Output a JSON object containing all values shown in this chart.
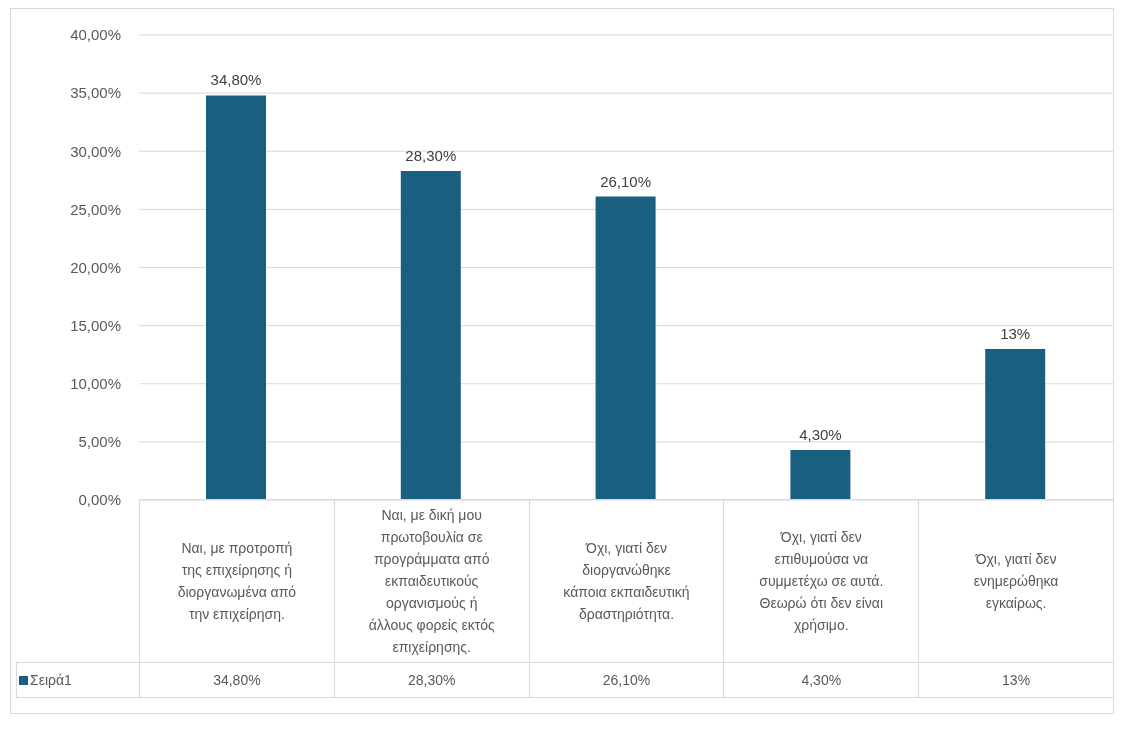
{
  "chart_data": {
    "type": "bar",
    "categories": [
      "Ναι, με προτροπή της επιχείρησης ή διοργανωμένα από την επιχείρηση.",
      "Ναι, με δική μου πρωτοβουλία σε προγράμματα από εκπαιδευτικούς οργανισμούς ή άλλους φορείς εκτός επιχείρησης.",
      "Όχι, γιατί δεν διοργανώθηκε κάποια εκπαιδευτική δραστηριότητα.",
      "Όχι, γιατί δεν επιθυμούσα να συμμετέχω σε αυτά. Θεωρώ ότι δεν είναι χρήσιμο.",
      "Όχι, γιατί δεν ενημερώθηκα εγκαίρως."
    ],
    "series": [
      {
        "name": "Σειρά1",
        "color": "#1a5f80",
        "values": [
          34.8,
          28.3,
          26.1,
          4.3,
          13
        ],
        "value_labels": [
          "34,80%",
          "28,30%",
          "26,10%",
          "4,30%",
          "13%"
        ]
      }
    ],
    "ylim": [
      0,
      40
    ],
    "yticks": [
      {
        "value": 0,
        "label": "0,00%"
      },
      {
        "value": 5,
        "label": "5,00%"
      },
      {
        "value": 10,
        "label": "10,00%"
      },
      {
        "value": 15,
        "label": "15,00%"
      },
      {
        "value": 20,
        "label": "20,00%"
      },
      {
        "value": 25,
        "label": "25,00%"
      },
      {
        "value": 30,
        "label": "30,00%"
      },
      {
        "value": 35,
        "label": "35,00%"
      },
      {
        "value": 40,
        "label": "40,00%"
      }
    ],
    "grid": "y",
    "legend": "bottom left"
  }
}
